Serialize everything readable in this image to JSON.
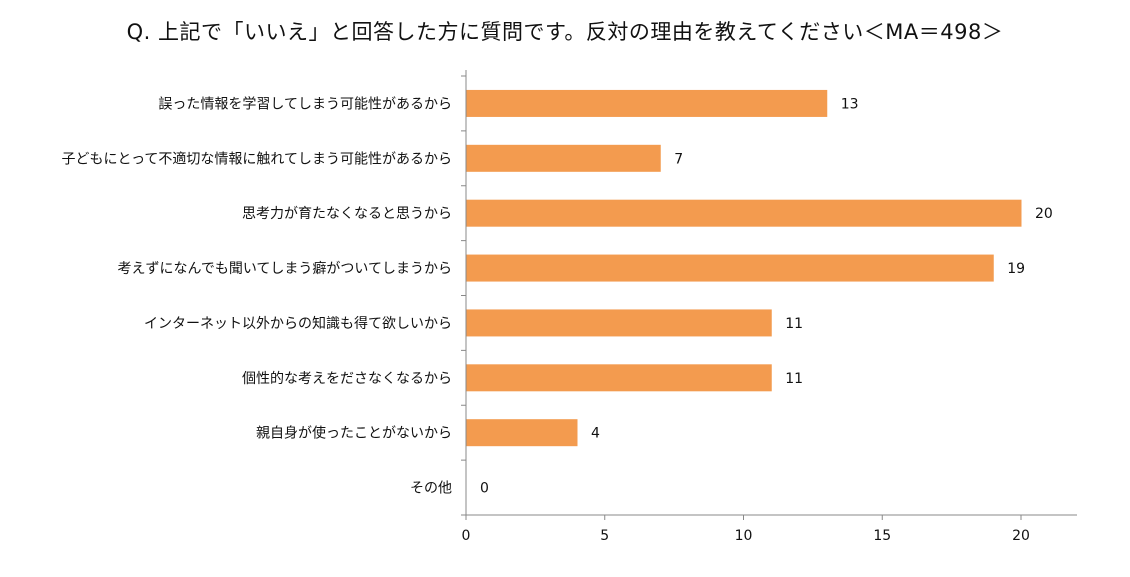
{
  "chart_data": {
    "type": "bar",
    "orientation": "horizontal",
    "title": "Q. 上記で「いいえ」と回答した方に質問です。反対の理由を教えてください＜MA＝498＞",
    "categories": [
      "誤った情報を学習してしまう可能性があるから",
      "子どもにとって不適切な情報に触れてしまう可能性があるから",
      "思考力が育たなくなると思うから",
      "考えずになんでも聞いてしまう癖がついてしまうから",
      "インターネット以外からの知識も得て欲しいから",
      "個性的な考えをださなくなるから",
      "親自身が使ったことがないから",
      "その他"
    ],
    "values": [
      13,
      7,
      20,
      19,
      11,
      11,
      4,
      0
    ],
    "xlim": [
      0,
      22
    ],
    "xticks": [
      0,
      5,
      10,
      15,
      20
    ],
    "grid": false,
    "legend": "none",
    "bar_color": "#F39B4F"
  }
}
